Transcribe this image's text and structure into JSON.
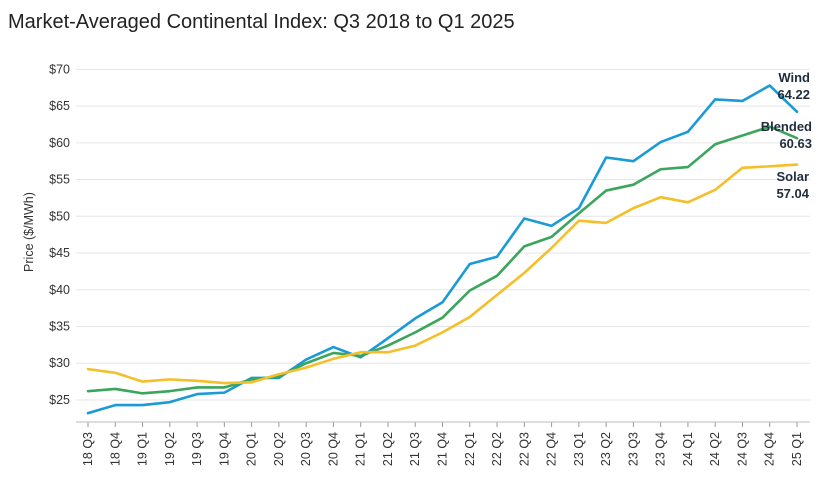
{
  "chart_data": {
    "type": "line",
    "title": "Market-Averaged Continental Index: Q3 2018 to Q1 2025",
    "xlabel": "",
    "ylabel": "Price ($/MWh)",
    "ylim": [
      22,
      71
    ],
    "yticks": [
      25,
      30,
      35,
      40,
      45,
      50,
      55,
      60,
      65,
      70
    ],
    "ytick_labels": [
      "$25",
      "$30",
      "$35",
      "$40",
      "$45",
      "$50",
      "$55",
      "$60",
      "$65",
      "$70"
    ],
    "grid": true,
    "categories": [
      "18 Q3",
      "18 Q4",
      "19 Q1",
      "19 Q2",
      "19 Q3",
      "19 Q4",
      "20 Q1",
      "20 Q2",
      "20 Q3",
      "20 Q4",
      "21 Q1",
      "21 Q2",
      "21 Q3",
      "21 Q4",
      "22 Q1",
      "22 Q2",
      "22 Q3",
      "22 Q4",
      "23 Q1",
      "23 Q2",
      "23 Q3",
      "23 Q4",
      "24 Q1",
      "24 Q2",
      "24 Q3",
      "24 Q4",
      "25 Q1"
    ],
    "series": [
      {
        "name": "Wind",
        "end_label": "Wind",
        "end_value": "64.22",
        "color": "#1a9ad6",
        "values": [
          23.2,
          24.3,
          24.3,
          24.7,
          25.8,
          26.0,
          28.0,
          28.0,
          30.5,
          32.2,
          30.8,
          33.4,
          36.1,
          38.3,
          43.5,
          44.5,
          49.7,
          48.7,
          51.1,
          58.0,
          57.5,
          60.1,
          61.5,
          65.9,
          65.7,
          67.8,
          64.22
        ]
      },
      {
        "name": "Blended",
        "end_label": "Blended",
        "end_value": "60.63",
        "color": "#3aa55b",
        "values": [
          26.2,
          26.5,
          25.9,
          26.2,
          26.7,
          26.7,
          27.8,
          28.2,
          30.0,
          31.4,
          31.0,
          32.4,
          34.2,
          36.2,
          39.9,
          41.9,
          45.9,
          47.2,
          50.4,
          53.5,
          54.3,
          56.4,
          56.7,
          59.8,
          61.0,
          62.2,
          60.63
        ]
      },
      {
        "name": "Solar",
        "end_label": "Solar",
        "end_value": "57.04",
        "color": "#f5bf2a",
        "values": [
          29.2,
          28.7,
          27.5,
          27.8,
          27.6,
          27.3,
          27.4,
          28.5,
          29.4,
          30.6,
          31.5,
          31.5,
          32.4,
          34.2,
          36.3,
          39.3,
          42.3,
          45.7,
          49.4,
          49.1,
          51.1,
          52.6,
          51.9,
          53.6,
          56.6,
          56.8,
          57.04
        ]
      }
    ]
  }
}
